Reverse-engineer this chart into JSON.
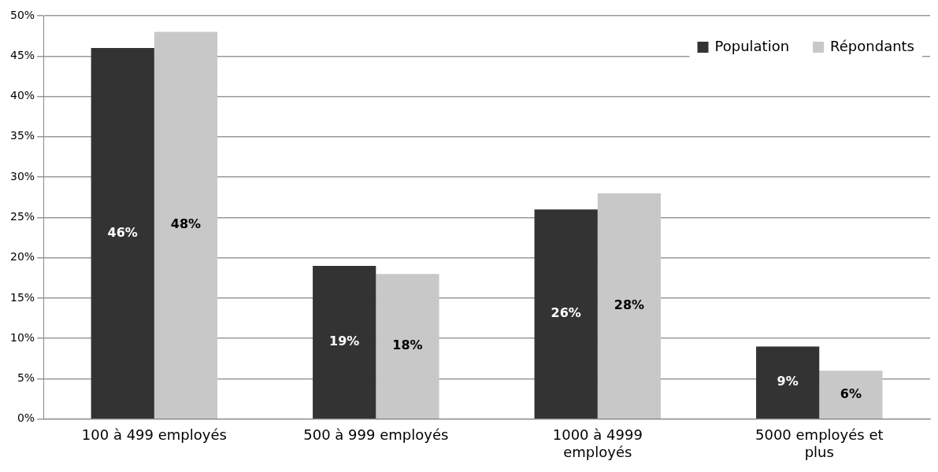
{
  "chart_data": {
    "type": "bar",
    "categories": [
      "100 à 499 employés",
      "500 à 999 employés",
      "1000 à 4999 employés",
      "5000 employés et plus"
    ],
    "series": [
      {
        "name": "Population",
        "color": "#333333",
        "values": [
          46,
          19,
          26,
          9
        ],
        "value_labels": [
          "46%",
          "19%",
          "26%",
          "9%"
        ]
      },
      {
        "name": "Répondants",
        "color": "#c8c8c8",
        "values": [
          48,
          18,
          28,
          6
        ],
        "value_labels": [
          "48%",
          "18%",
          "28%",
          "6%"
        ]
      }
    ],
    "ylim": [
      0,
      50
    ],
    "yticks": [
      {
        "value": 0,
        "label": "0%"
      },
      {
        "value": 5,
        "label": "5%"
      },
      {
        "value": 10,
        "label": "10%"
      },
      {
        "value": 15,
        "label": "15%"
      },
      {
        "value": 20,
        "label": "20%"
      },
      {
        "value": 25,
        "label": "25%"
      },
      {
        "value": 30,
        "label": "30%"
      },
      {
        "value": 35,
        "label": "35%"
      },
      {
        "value": 40,
        "label": "40%"
      },
      {
        "value": 45,
        "label": "45%"
      },
      {
        "value": 50,
        "label": "50%"
      }
    ],
    "grid": "y",
    "legend": "top right"
  }
}
